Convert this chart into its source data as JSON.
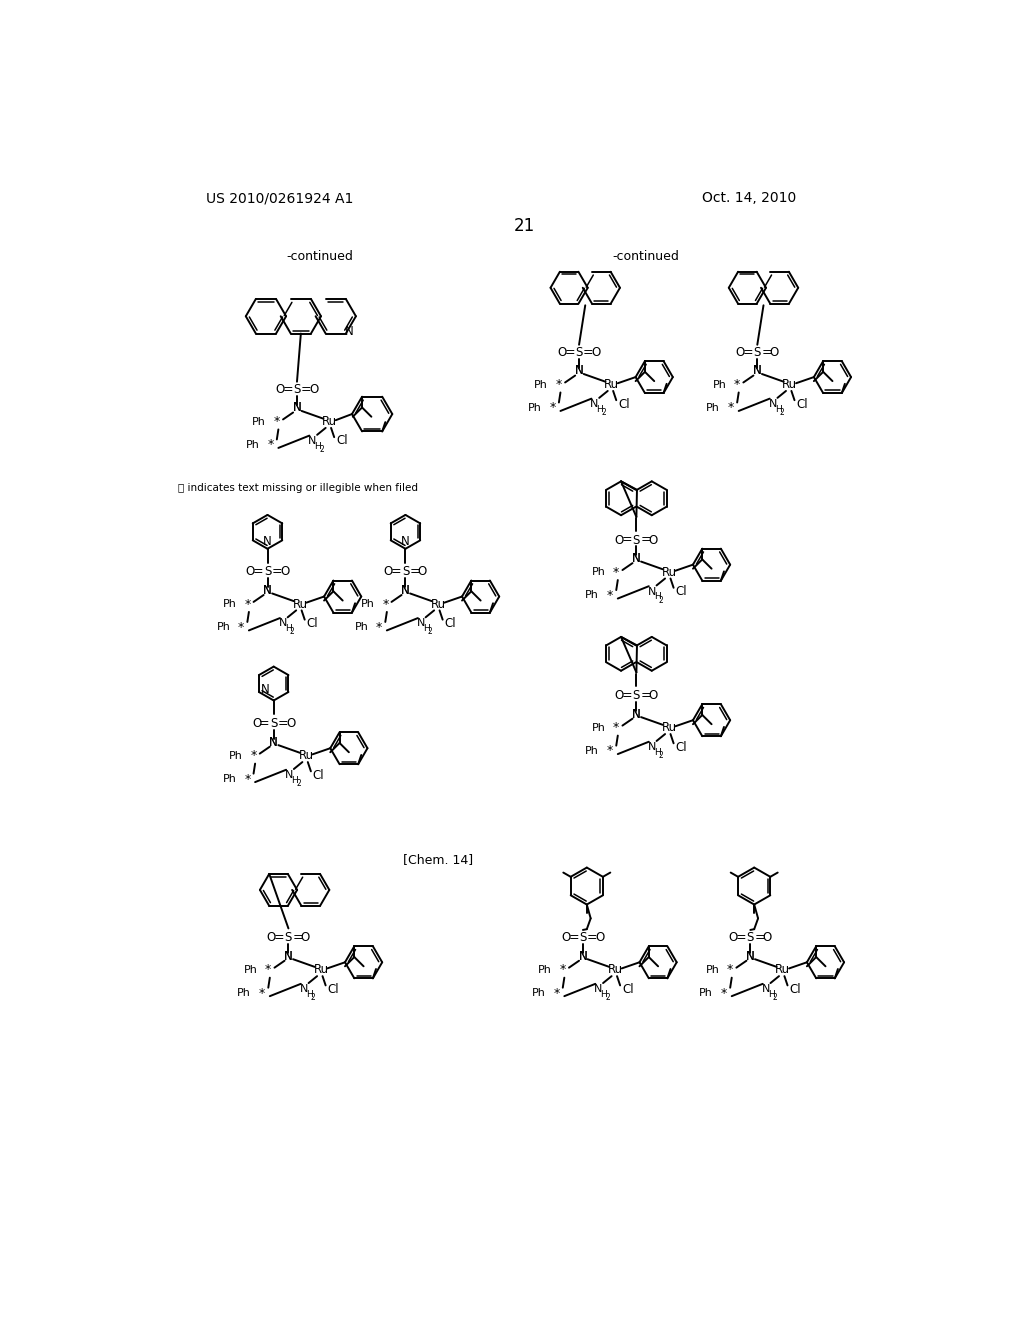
{
  "page_header_left": "US 2010/0261924 A1",
  "page_header_right": "Oct. 14, 2010",
  "page_number": "21",
  "background": "#ffffff"
}
